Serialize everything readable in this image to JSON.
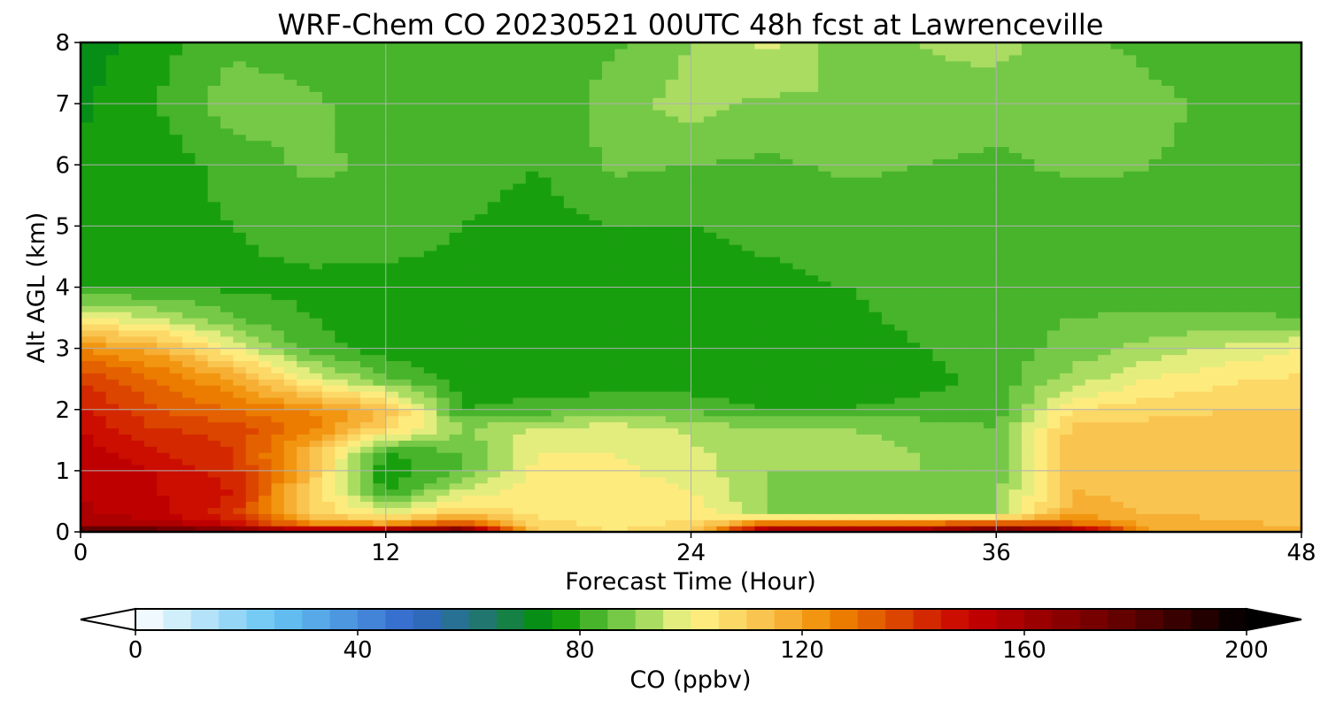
{
  "chart_data": {
    "type": "heatmap",
    "title": "WRF-Chem CO  20230521 00UTC 48h fcst at Lawrenceville",
    "xlabel": "Forecast Time (Hour)",
    "ylabel": "Alt AGL (km)",
    "xlim": [
      0,
      48
    ],
    "ylim": [
      0,
      8
    ],
    "x_ticks": [
      "0",
      "12",
      "24",
      "36",
      "48"
    ],
    "y_ticks": [
      "0",
      "1",
      "2",
      "3",
      "4",
      "5",
      "6",
      "7",
      "8"
    ],
    "grid": true,
    "x": [
      0,
      3,
      6,
      9,
      12,
      15,
      18,
      21,
      24,
      27,
      30,
      33,
      36,
      39,
      42,
      45,
      48
    ],
    "y": [
      0,
      0.1,
      0.3,
      0.7,
      1.0,
      1.3,
      1.7,
      2.0,
      2.5,
      3.0,
      3.5,
      4.0,
      5.0,
      6.0,
      7.0,
      8.0
    ],
    "z": [
      [
        195,
        190,
        180,
        170,
        185,
        190,
        110,
        105,
        108,
        175,
        175,
        175,
        190,
        180,
        120,
        118,
        115
      ],
      [
        160,
        160,
        150,
        130,
        125,
        145,
        108,
        104,
        106,
        140,
        140,
        140,
        150,
        135,
        118,
        116,
        115
      ],
      [
        156,
        152,
        142,
        110,
        100,
        110,
        104,
        102,
        104,
        90,
        88,
        88,
        90,
        118,
        115,
        114,
        113
      ],
      [
        155,
        150,
        145,
        110,
        78,
        95,
        103,
        102,
        100,
        90,
        88,
        88,
        88,
        115,
        113,
        112,
        112
      ],
      [
        155,
        150,
        142,
        115,
        76,
        85,
        102,
        101,
        98,
        90,
        90,
        90,
        87,
        115,
        112,
        112,
        112
      ],
      [
        153,
        145,
        140,
        115,
        80,
        85,
        100,
        100,
        96,
        92,
        93,
        90,
        86,
        114,
        112,
        112,
        111
      ],
      [
        150,
        140,
        138,
        128,
        108,
        90,
        96,
        98,
        94,
        90,
        90,
        88,
        85,
        112,
        112,
        111,
        111
      ],
      [
        145,
        135,
        130,
        125,
        115,
        80,
        82,
        85,
        84,
        80,
        80,
        82,
        82,
        105,
        108,
        110,
        110
      ],
      [
        140,
        130,
        120,
        100,
        85,
        78,
        76,
        76,
        76,
        76,
        76,
        78,
        82,
        92,
        100,
        104,
        106
      ],
      [
        125,
        118,
        100,
        82,
        78,
        77,
        76,
        76,
        76,
        76,
        77,
        80,
        82,
        87,
        92,
        96,
        100
      ],
      [
        100,
        95,
        85,
        80,
        78,
        77,
        77,
        77,
        77,
        78,
        79,
        81,
        83,
        85,
        86,
        86,
        85
      ],
      [
        80,
        80,
        79,
        79,
        78,
        78,
        78,
        78,
        78,
        79,
        80,
        81,
        82,
        82,
        82,
        82,
        81
      ],
      [
        78,
        78,
        80,
        82,
        83,
        80,
        78,
        80,
        80,
        81,
        82,
        83,
        82,
        82,
        84,
        85,
        83
      ],
      [
        76,
        77,
        82,
        86,
        84,
        82,
        80,
        86,
        85,
        84,
        86,
        85,
        84,
        86,
        85,
        84,
        83
      ],
      [
        74,
        80,
        88,
        86,
        82,
        81,
        80,
        88,
        92,
        89,
        90,
        88,
        87,
        88,
        86,
        84,
        82
      ],
      [
        72,
        78,
        84,
        82,
        80,
        80,
        81,
        84,
        90,
        96,
        88,
        90,
        92,
        86,
        84,
        83,
        82
      ]
    ],
    "colorbar": {
      "label": "CO  (ppbv)",
      "range": [
        0,
        200
      ],
      "step": 5,
      "ticks": [
        "0",
        "40",
        "80",
        "120",
        "160",
        "200"
      ],
      "extend": "both",
      "stops": [
        [
          0,
          "#ffffff"
        ],
        [
          25,
          "#67c5f3"
        ],
        [
          50,
          "#3366cc"
        ],
        [
          65,
          "#1d7a5c"
        ],
        [
          75,
          "#009400"
        ],
        [
          90,
          "#8dd355"
        ],
        [
          100,
          "#fff58a"
        ],
        [
          115,
          "#f8bb44"
        ],
        [
          125,
          "#f08a00"
        ],
        [
          150,
          "#c80000"
        ],
        [
          180,
          "#5a0000"
        ],
        [
          200,
          "#000000"
        ]
      ]
    }
  }
}
